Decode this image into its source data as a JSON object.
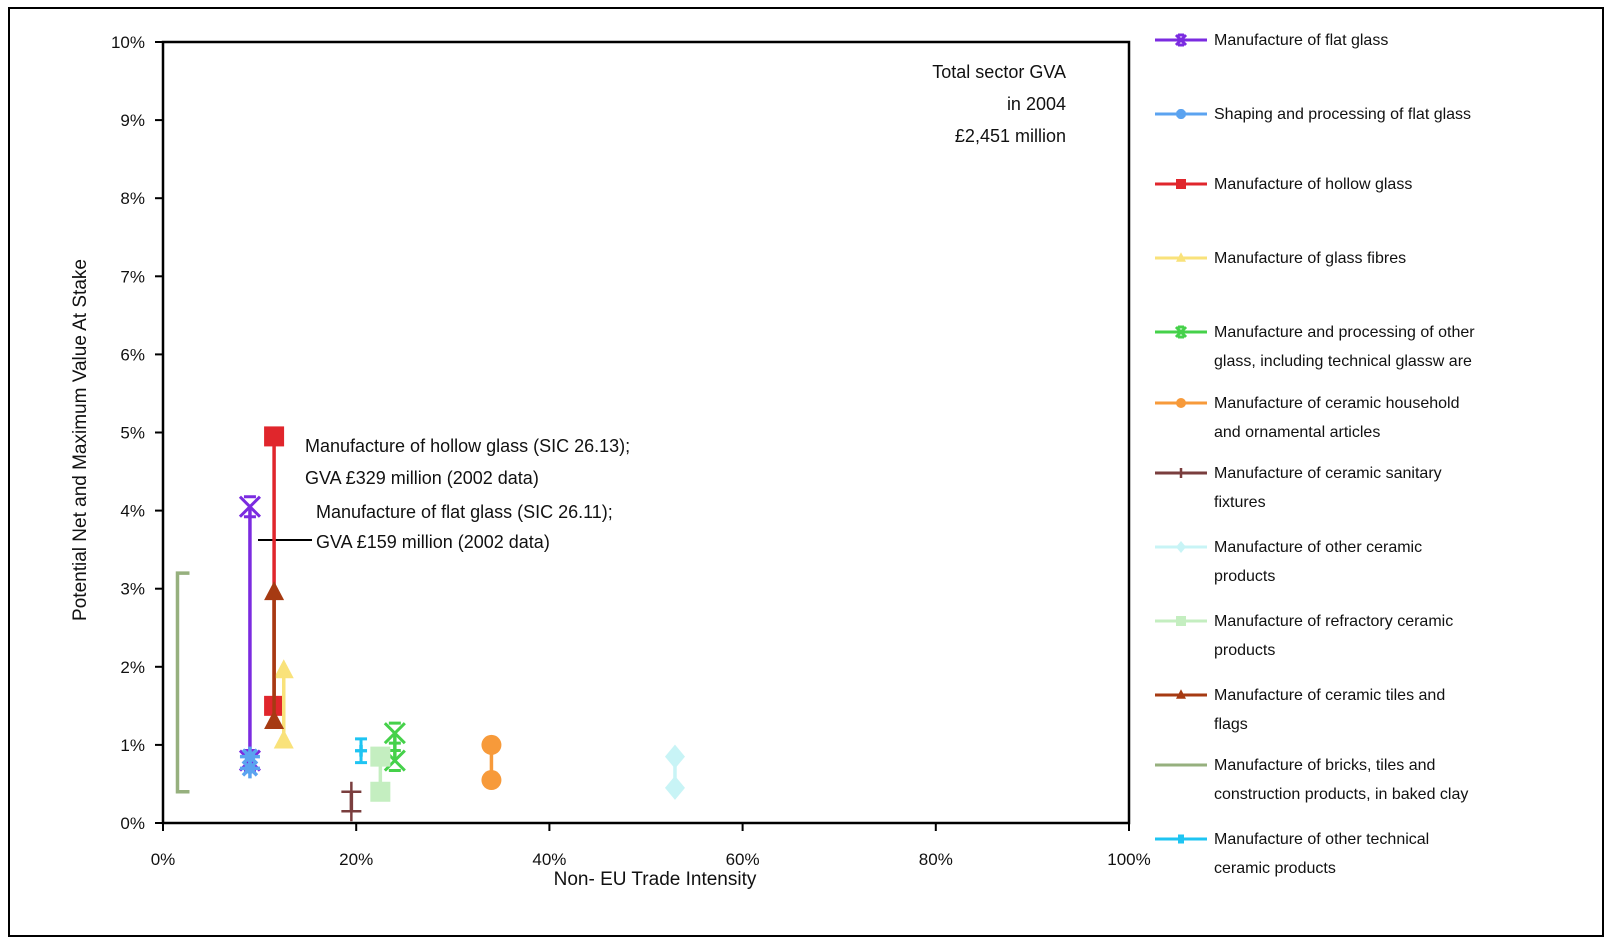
{
  "chart_data": {
    "type": "scatter",
    "xlabel": "Non- EU Trade Intensity",
    "ylabel": "Potential Net and Maximum Value At Stake",
    "xlim": [
      0,
      100
    ],
    "ylim": [
      0,
      10
    ],
    "x_ticks": [
      "0%",
      "20%",
      "40%",
      "60%",
      "80%",
      "100%"
    ],
    "y_ticks": [
      "0%",
      "1%",
      "2%",
      "3%",
      "4%",
      "5%",
      "6%",
      "7%",
      "8%",
      "9%",
      "10%"
    ],
    "annotations": {
      "total": [
        "Total sector GVA",
        "in 2004",
        "£2,451 million"
      ],
      "hollow": [
        "Manufacture of hollow glass (SIC 26.13);",
        "GVA £329 million (2002 data)"
      ],
      "flat": [
        "Manufacture of flat glass (SIC 26.11);",
        "GVA £159 million (2002 data)"
      ]
    },
    "series": [
      {
        "name": [
          "Manufacture of flat glass"
        ],
        "color": "#7B2BE0",
        "marker": "x",
        "x": 9,
        "y": [
          0.8,
          4.05
        ]
      },
      {
        "name": [
          "Shaping and processing of flat glass"
        ],
        "color": "#5BA3F0",
        "marker": "star",
        "x": 9,
        "y": [
          0.7,
          0.85
        ]
      },
      {
        "name": [
          "Manufacture of hollow  glass"
        ],
        "color": "#E0262C",
        "marker": "square",
        "x": 11.5,
        "y": [
          1.5,
          4.95
        ]
      },
      {
        "name": [
          "Manufacture of glass fibres"
        ],
        "color": "#F9E27A",
        "marker": "triangle",
        "x": 12.5,
        "y": [
          1.05,
          1.95
        ]
      },
      {
        "name": [
          "Manufacture and processing of other",
          "glass, including technical glassw are"
        ],
        "color": "#45D14A",
        "marker": "x",
        "x": 24,
        "y": [
          0.8,
          1.15
        ]
      },
      {
        "name": [
          "Manufacture of ceramic household",
          "and ornamental articles"
        ],
        "color": "#F79A3A",
        "marker": "circle",
        "x": 34,
        "y": [
          0.55,
          1.0
        ]
      },
      {
        "name": [
          "Manufacture of ceramic sanitary",
          "fixtures"
        ],
        "color": "#7A3E3E",
        "marker": "plus",
        "x": 19.5,
        "y": [
          0.15,
          0.4
        ]
      },
      {
        "name": [
          "Manufacture of other ceramic",
          "products"
        ],
        "color": "#C8F4F6",
        "marker": "diamond",
        "x": 53,
        "y": [
          0.45,
          0.85
        ]
      },
      {
        "name": [
          "Manufacture of refractory ceramic",
          "products"
        ],
        "color": "#C4EEC0",
        "marker": "square",
        "x": 22.5,
        "y": [
          0.4,
          0.85
        ]
      },
      {
        "name": [
          "Manufacture of ceramic tiles and",
          "flags"
        ],
        "color": "#A63A12",
        "marker": "triangle",
        "x": 11.5,
        "y": [
          1.3,
          2.95
        ]
      },
      {
        "name": [
          "Manufacture of bricks, tiles and",
          "construction products, in baked clay"
        ],
        "color": "#96B07E",
        "marker": "bracket",
        "x": 1.5,
        "y": [
          0.4,
          3.2
        ]
      },
      {
        "name": [
          "Manufacture of other technical",
          "ceramic products"
        ],
        "color": "#1EC4F2",
        "marker": "ibeam",
        "x": 20.5,
        "y": [
          0.85,
          1.0
        ]
      }
    ]
  }
}
